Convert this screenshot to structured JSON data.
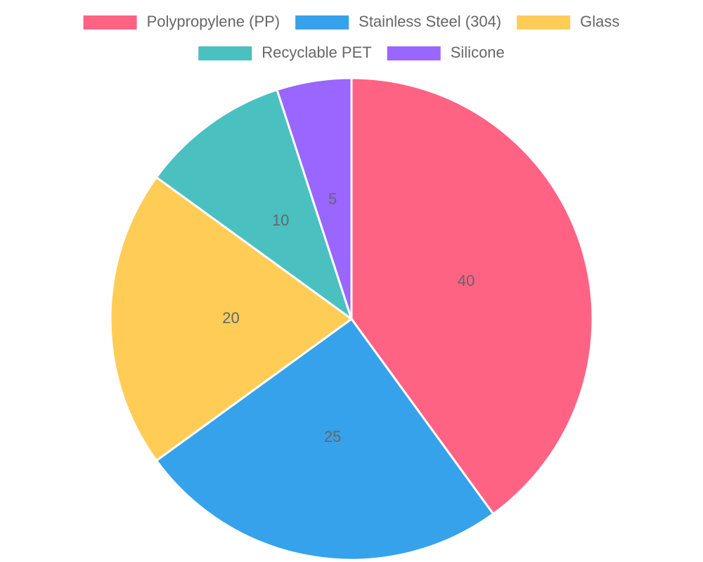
{
  "chart_data": {
    "type": "pie",
    "categories": [
      "Polypropylene (PP)",
      "Stainless Steel (304)",
      "Glass",
      "Recyclable PET",
      "Silicone"
    ],
    "values": [
      40,
      25,
      20,
      10,
      5
    ],
    "colors": [
      "#ff6384",
      "#36a2eb",
      "#ffcd56",
      "#4bc0c0",
      "#9966ff"
    ],
    "legend": "top"
  }
}
